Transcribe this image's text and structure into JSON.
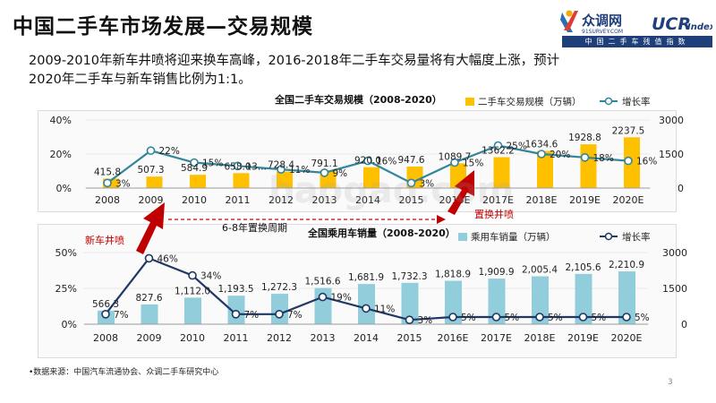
{
  "title": "中国二手车市场发展—交易规模",
  "logo": {
    "brand_text": "众调网",
    "brand_sub": "91SURVEY.COM",
    "index_text": "UCR",
    "index_sub": "Index",
    "bar_text": "中国二手车残值指数"
  },
  "subtitle": {
    "line1": "2009-2010年新车井喷将迎来换车高峰，2016-2018年二手车交易量将有大幅度上涨，预计",
    "line2": "2020年二手车与新车销售比例为1:1。"
  },
  "annotations": {
    "new_car_boom": "新车井喷",
    "replace_cycle": "6-8年置换周期",
    "replace_boom": "置换井喷"
  },
  "watermark": "baogao.com",
  "source_note": "•数据来源：中国汽车流通协会、众调二手车研究中心",
  "page_number": "3",
  "colors": {
    "bar1": "#ffc000",
    "bar2": "#92cddc",
    "line1": "#31859c",
    "line2": "#1f3864",
    "arrow": "#c00000",
    "brand_blue": "#1f3f7a"
  },
  "chart_data": [
    {
      "type": "bar",
      "title": "全国二手车交易规模（2008-2020）",
      "categories": [
        "2008",
        "2009",
        "2010",
        "2011",
        "2012",
        "2013",
        "2014",
        "2015",
        "2016E",
        "2017E",
        "2018E",
        "2019E",
        "2020E"
      ],
      "bar_series": {
        "name": "二手车交易规模（万辆）",
        "values": [
          415.8,
          507.3,
          584.9,
          658.0,
          728.4,
          791.1,
          920.0,
          947.6,
          1089.7,
          1362.2,
          1634.6,
          1928.8,
          2237.5
        ]
      },
      "bar_labels": [
        "415.8",
        "507.3",
        "584.9",
        "658.0",
        "728.4",
        "791.1",
        "920.0",
        "947.6",
        "1089.7",
        "1362.2",
        "1634.6",
        "1928.8",
        "2237.5"
      ],
      "line_series": {
        "name": "增长率",
        "values": [
          3,
          22,
          15,
          13,
          11,
          9,
          16,
          3,
          15,
          25,
          20,
          18,
          16
        ]
      },
      "line_labels": [
        "3%",
        "22%",
        "15%",
        "13...",
        "11%",
        "9%",
        "16%",
        "3%",
        "15%",
        "25%",
        "20%",
        "18%",
        "16%"
      ],
      "y_left": {
        "range": [
          0,
          40
        ],
        "ticks": [
          "0%",
          "20%",
          "40%"
        ]
      },
      "y_right": {
        "range": [
          0,
          3000
        ],
        "ticks": [
          "0",
          "1500",
          "3000"
        ]
      },
      "legend": "top-right"
    },
    {
      "type": "bar",
      "title": "全国乘用车销量（2008-2020）",
      "categories": [
        "2008",
        "2009",
        "2010",
        "2011",
        "2012",
        "2013",
        "2014",
        "2015",
        "2016E",
        "2017E",
        "2018E",
        "2019E",
        "2020E"
      ],
      "bar_series": {
        "name": "乘用车销量（万辆）",
        "values": [
          566.3,
          827.6,
          1112.0,
          1193.5,
          1272.3,
          1516.6,
          1681.9,
          1732.3,
          1818.9,
          1909.9,
          2005.4,
          2105.6,
          2210.9
        ]
      },
      "bar_labels": [
        "566.3",
        "827.6",
        "1,112.0",
        "1,193.5",
        "1,272.3",
        "1,516.6",
        "1,681.9",
        "1,732.3",
        "1,818.9",
        "1,909.9",
        "2,005.4",
        "2,105.6",
        "2,210.9"
      ],
      "line_series": {
        "name": "增长率",
        "values": [
          7,
          46,
          34,
          7,
          7,
          19,
          11,
          3,
          5,
          5,
          5,
          5,
          5
        ]
      },
      "line_labels": [
        "7%",
        "46%",
        "34%",
        "7%",
        "7%",
        "19%",
        "11%",
        "3%",
        "5%",
        "5%",
        "5%",
        "5%",
        "5%"
      ],
      "y_left": {
        "range": [
          0,
          50
        ],
        "ticks": [
          "0%",
          "25%",
          "50%"
        ]
      },
      "y_right": {
        "range": [
          0,
          3000
        ],
        "ticks": [
          "0",
          "1500",
          "3000"
        ]
      },
      "legend": "top-right"
    }
  ]
}
